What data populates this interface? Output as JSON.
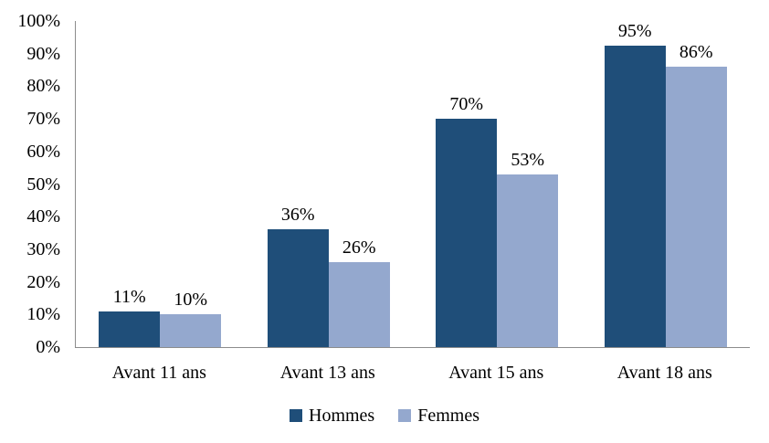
{
  "chart_data": {
    "type": "bar",
    "categories": [
      "Avant 11 ans",
      "Avant 13 ans",
      "Avant 15 ans",
      "Avant 18 ans"
    ],
    "series": [
      {
        "name": "Hommes",
        "color": "#1F4E79",
        "values": [
          11,
          36,
          70,
          95
        ]
      },
      {
        "name": "Femmes",
        "color": "#94A8CE",
        "values": [
          10,
          26,
          53,
          86
        ]
      }
    ],
    "value_suffix": "%",
    "yticks": [
      "0%",
      "10%",
      "20%",
      "30%",
      "40%",
      "50%",
      "60%",
      "70%",
      "80%",
      "90%",
      "100%"
    ],
    "ylim": [
      0,
      100
    ],
    "grid": false,
    "legend_position": "bottom",
    "axis_color": "#8C8C8C",
    "title": "",
    "xlabel": "",
    "ylabel": ""
  }
}
